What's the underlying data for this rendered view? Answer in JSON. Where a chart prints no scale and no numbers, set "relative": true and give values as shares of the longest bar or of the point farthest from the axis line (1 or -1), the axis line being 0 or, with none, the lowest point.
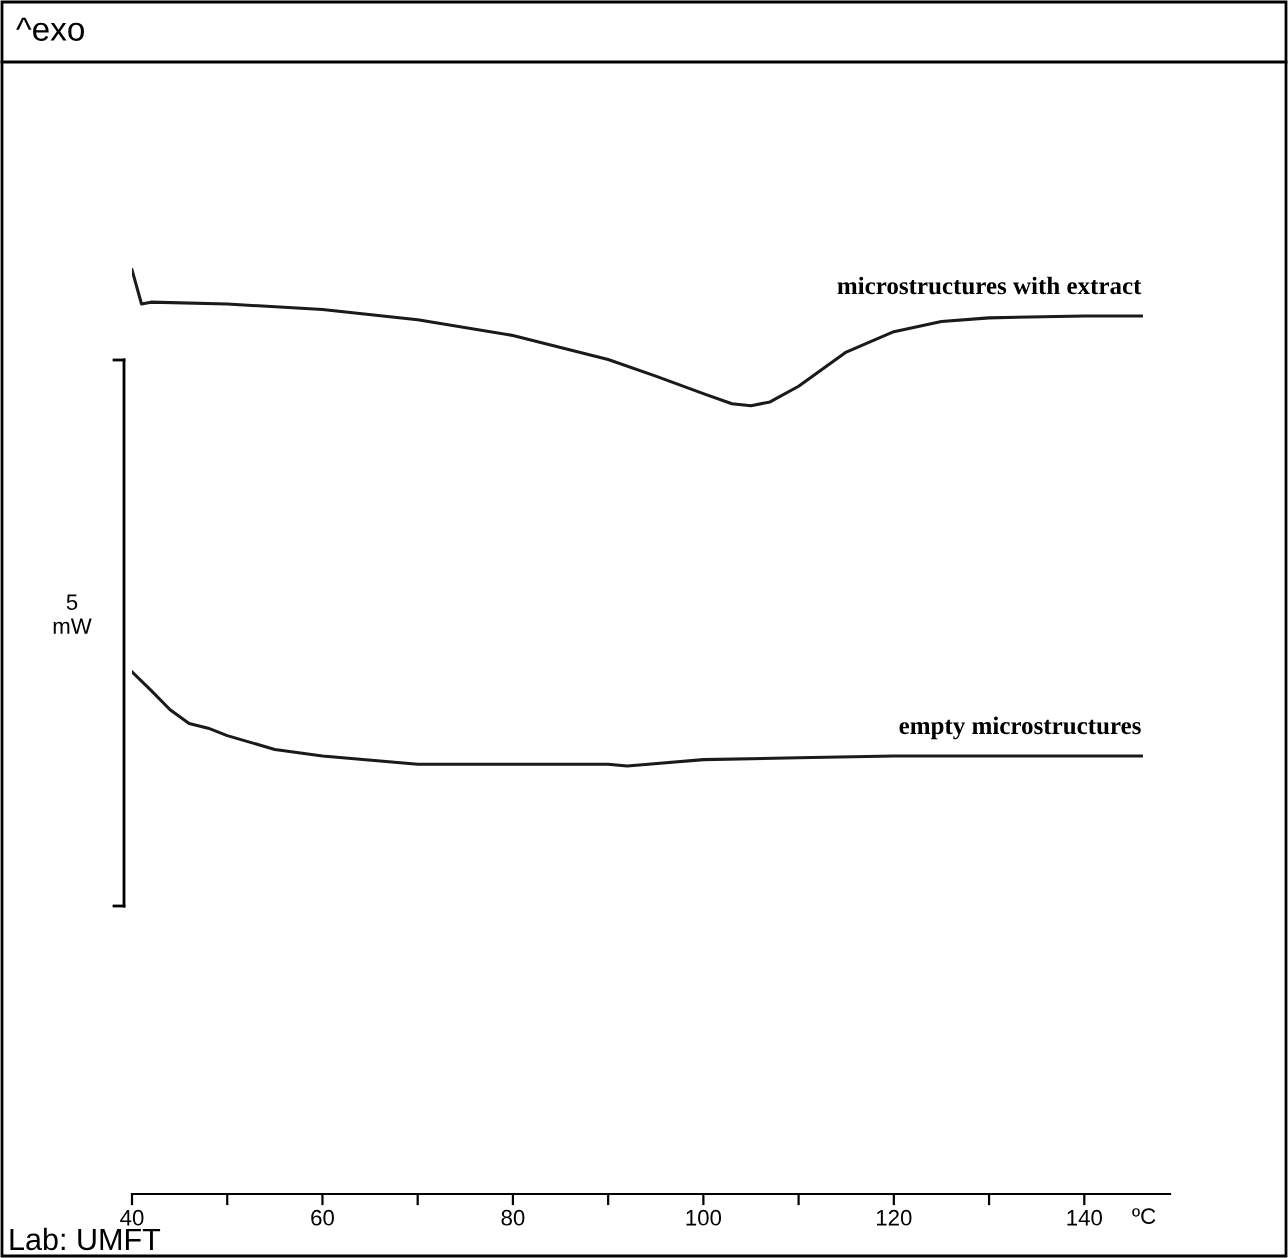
{
  "chart_data": {
    "type": "line",
    "title": "^exo",
    "relative": true,
    "x": [
      40,
      41,
      42,
      50,
      60,
      70,
      80,
      90,
      95,
      100,
      103,
      105,
      107,
      110,
      115,
      120,
      125,
      130,
      140,
      146
    ],
    "series": [
      {
        "name": "microstructures with extract",
        "color": "#1a1a1a",
        "values": [
          1.0,
          0.963,
          0.965,
          0.963,
          0.957,
          0.946,
          0.929,
          0.903,
          0.885,
          0.866,
          0.855,
          0.853,
          0.857,
          0.874,
          0.911,
          0.933,
          0.944,
          0.948,
          0.95,
          0.95
        ]
      },
      {
        "name": "empty microstructures",
        "color": "#1a1a1a",
        "x": [
          40,
          42,
          44,
          46,
          48,
          50,
          55,
          60,
          70,
          80,
          90,
          92,
          100,
          110,
          120,
          140,
          146
        ],
        "values": [
          0.565,
          0.545,
          0.524,
          0.509,
          0.504,
          0.496,
          0.481,
          0.474,
          0.465,
          0.465,
          0.465,
          0.463,
          0.47,
          0.472,
          0.474,
          0.474,
          0.474
        ]
      }
    ],
    "xlim": [
      40,
      149
    ],
    "xticks": [
      40,
      {
        "value": 50,
        "label": null
      },
      60,
      {
        "value": 70,
        "label": null
      },
      80,
      {
        "value": 90,
        "label": null
      },
      100,
      {
        "value": 110,
        "label": null
      },
      120,
      {
        "value": 130,
        "label": null
      },
      140
    ],
    "xlabel": "ºC",
    "annotations": [
      "5\nmW",
      "Lab: UMFT"
    ],
    "grid": false,
    "legend": false,
    "line_style": "solid",
    "marker": "none"
  }
}
